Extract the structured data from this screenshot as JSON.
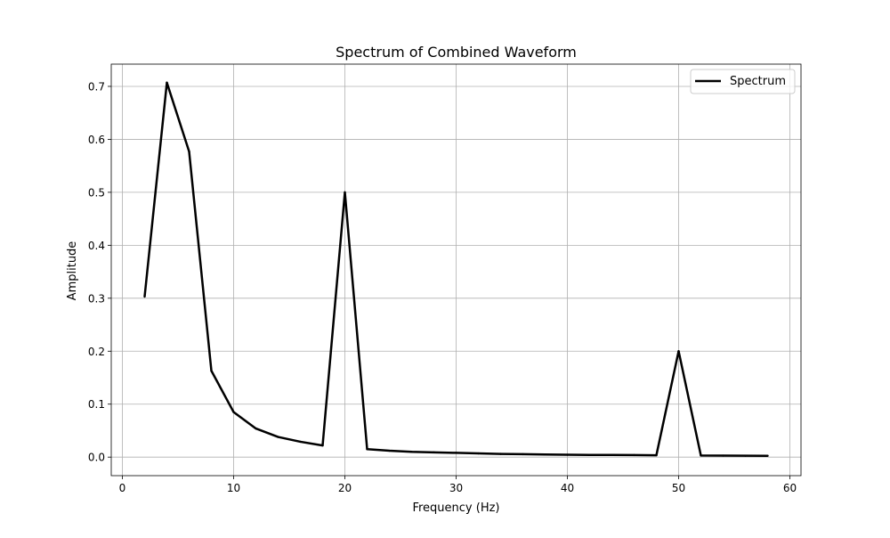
{
  "chart_data": {
    "type": "line",
    "title": "Spectrum of Combined Waveform",
    "xlabel": "Frequency (Hz)",
    "ylabel": "Amplitude",
    "xlim": [
      -1,
      61
    ],
    "ylim": [
      -0.035,
      0.742
    ],
    "xticks": [
      0,
      10,
      20,
      30,
      40,
      50,
      60
    ],
    "yticks": [
      0.0,
      0.1,
      0.2,
      0.3,
      0.4,
      0.5,
      0.6,
      0.7
    ],
    "xtick_labels": [
      "0",
      "10",
      "20",
      "30",
      "40",
      "50",
      "60"
    ],
    "ytick_labels": [
      "0.0",
      "0.1",
      "0.2",
      "0.3",
      "0.4",
      "0.5",
      "0.6",
      "0.7"
    ],
    "grid": true,
    "legend": {
      "placement": "top-right",
      "entries": [
        "Spectrum"
      ]
    },
    "series": [
      {
        "name": "Spectrum",
        "color": "#000000",
        "x": [
          2,
          4,
          6,
          8,
          10,
          12,
          14,
          16,
          18,
          20,
          22,
          24,
          26,
          28,
          30,
          32,
          34,
          36,
          38,
          40,
          42,
          44,
          46,
          48,
          50,
          52,
          54,
          56,
          58
        ],
        "y": [
          0.303,
          0.707,
          0.577,
          0.163,
          0.085,
          0.054,
          0.038,
          0.029,
          0.022,
          0.5,
          0.015,
          0.012,
          0.01,
          0.009,
          0.008,
          0.007,
          0.006,
          0.0055,
          0.005,
          0.0045,
          0.0042,
          0.004,
          0.0038,
          0.0035,
          0.2,
          0.003,
          0.0028,
          0.0026,
          0.0024
        ]
      }
    ]
  }
}
